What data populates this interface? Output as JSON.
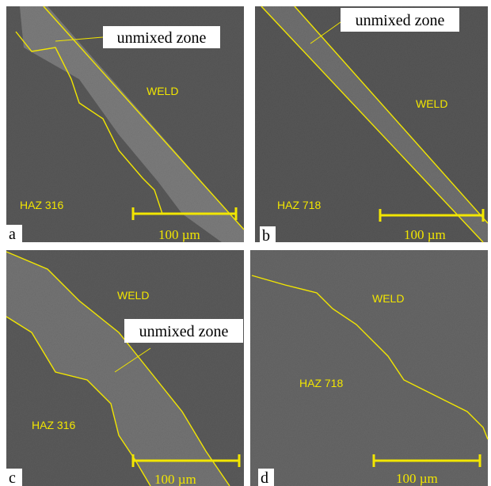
{
  "panels": [
    {
      "label": "a",
      "callout": "unmixed zone",
      "weld": "WELD",
      "haz": "HAZ 316",
      "scale_bar": "100 µm"
    },
    {
      "label": "b",
      "callout": "unmixed zone",
      "weld": "WELD",
      "haz": "HAZ 718",
      "scale_bar": "100 µm"
    },
    {
      "label": "c",
      "callout": "unmixed zone",
      "weld": "WELD",
      "haz": "HAZ 316",
      "scale_bar": "100 µm"
    },
    {
      "label": "d",
      "weld": "WELD",
      "haz": "HAZ 718",
      "scale_bar": "100 µm"
    }
  ]
}
